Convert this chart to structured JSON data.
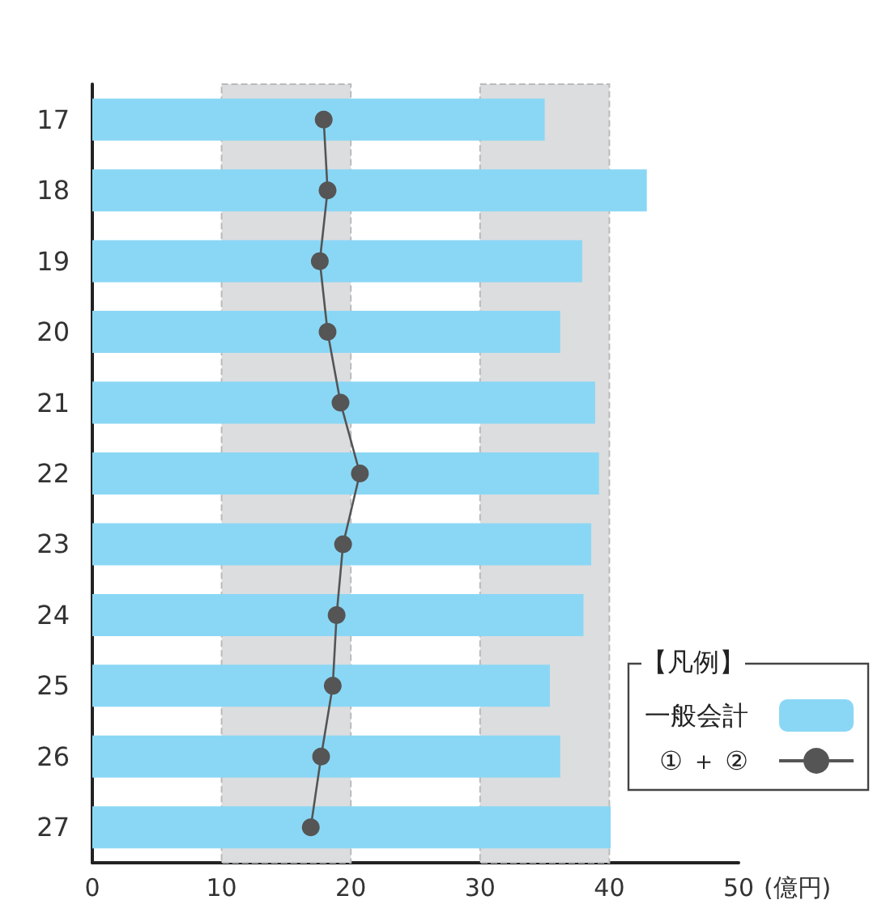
{
  "chart_data": {
    "type": "bar",
    "orientation": "horizontal",
    "categories": [
      "17",
      "18",
      "19",
      "20",
      "21",
      "22",
      "23",
      "24",
      "25",
      "26",
      "27"
    ],
    "series": [
      {
        "name": "一般会計",
        "type": "bar",
        "color": "#8ad7f5",
        "values": [
          35.0,
          42.9,
          37.9,
          36.2,
          38.9,
          39.2,
          38.6,
          38.0,
          35.4,
          36.2,
          40.1
        ]
      },
      {
        "name": "① ＋ ②",
        "type": "line",
        "color": "#555555",
        "values": [
          17.9,
          18.2,
          17.6,
          18.2,
          19.2,
          20.7,
          19.4,
          18.9,
          18.6,
          17.7,
          16.9
        ]
      }
    ],
    "xlim": [
      0,
      50
    ],
    "xticks": [
      0,
      10,
      20,
      30,
      40,
      50
    ],
    "xlabel": "(億円)",
    "bands": [
      {
        "axis": "x",
        "from": 10,
        "to": 20,
        "color": "#dcdddf"
      },
      {
        "axis": "x",
        "from": 30,
        "to": 40,
        "color": "#dcdddf"
      }
    ],
    "legend": "bottom right",
    "legend_title": "【凡例】",
    "marker": "circle"
  }
}
